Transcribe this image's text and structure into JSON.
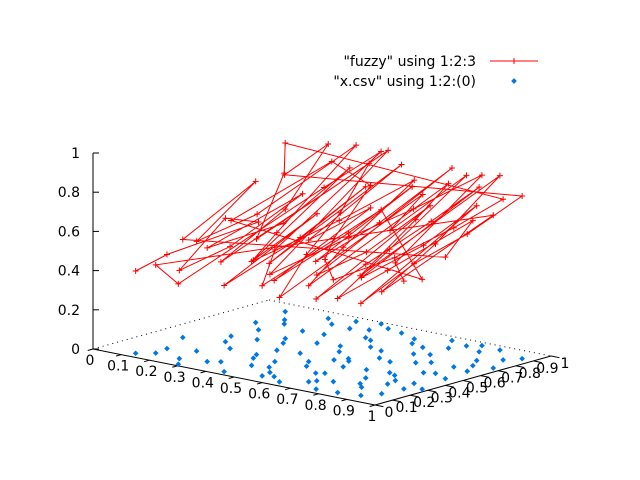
{
  "chart_data": {
    "type": "surface3d",
    "series": [
      {
        "name": "\"fuzzy\" using 1:2:3",
        "style": "linespoints",
        "color": "#ff0000"
      },
      {
        "name": "\"x.csv\" using 1:2:(0)",
        "style": "points",
        "color": "#0077e6"
      }
    ],
    "axes": {
      "x": {
        "range": [
          0,
          1
        ],
        "ticks": [
          "0",
          "0.1",
          "0.2",
          "0.3",
          "0.4",
          "0.5",
          "0.6",
          "0.7",
          "0.8",
          "0.9",
          "1"
        ]
      },
      "y": {
        "range": [
          0,
          1
        ],
        "ticks": [
          "0",
          "0.1",
          "0.2",
          "0.3",
          "0.4",
          "0.5",
          "0.6",
          "0.7",
          "0.8",
          "0.9",
          "1"
        ]
      },
      "z": {
        "range": [
          0,
          1
        ],
        "ticks": [
          "0",
          "0.2",
          "0.4",
          "0.6",
          "0.8",
          "1"
        ]
      }
    },
    "points": [
      [
        0.12,
        0.05
      ],
      [
        0.15,
        0.18
      ],
      [
        0.2,
        0.62
      ],
      [
        0.22,
        0.4
      ],
      [
        0.25,
        0.09
      ],
      [
        0.28,
        0.33
      ],
      [
        0.3,
        0.71
      ],
      [
        0.33,
        0.12
      ],
      [
        0.35,
        0.52
      ],
      [
        0.38,
        0.85
      ],
      [
        0.4,
        0.27
      ],
      [
        0.42,
        0.6
      ],
      [
        0.44,
        0.04
      ],
      [
        0.46,
        0.44
      ],
      [
        0.48,
        0.78
      ],
      [
        0.5,
        0.2
      ],
      [
        0.52,
        0.92
      ],
      [
        0.54,
        0.36
      ],
      [
        0.56,
        0.68
      ],
      [
        0.58,
        0.1
      ],
      [
        0.6,
        0.49
      ],
      [
        0.62,
        0.82
      ],
      [
        0.64,
        0.24
      ],
      [
        0.66,
        0.57
      ],
      [
        0.68,
        0.95
      ],
      [
        0.7,
        0.15
      ],
      [
        0.72,
        0.4
      ],
      [
        0.74,
        0.73
      ],
      [
        0.76,
        0.05
      ],
      [
        0.78,
        0.3
      ],
      [
        0.8,
        0.64
      ],
      [
        0.82,
        0.88
      ],
      [
        0.84,
        0.18
      ],
      [
        0.86,
        0.5
      ],
      [
        0.88,
        0.77
      ],
      [
        0.9,
        0.08
      ],
      [
        0.92,
        0.35
      ],
      [
        0.94,
        0.62
      ],
      [
        0.96,
        0.9
      ],
      [
        0.18,
        0.8
      ],
      [
        0.26,
        0.92
      ],
      [
        0.32,
        0.58
      ],
      [
        0.36,
        0.15
      ],
      [
        0.43,
        0.88
      ],
      [
        0.49,
        0.62
      ],
      [
        0.57,
        0.3
      ],
      [
        0.63,
        0.05
      ],
      [
        0.67,
        0.8
      ],
      [
        0.71,
        0.55
      ],
      [
        0.75,
        0.92
      ],
      [
        0.79,
        0.42
      ],
      [
        0.83,
        0.06
      ],
      [
        0.87,
        0.28
      ],
      [
        0.91,
        0.7
      ],
      [
        0.95,
        0.48
      ],
      [
        0.1,
        0.35
      ],
      [
        0.14,
        0.7
      ],
      [
        0.23,
        0.22
      ],
      [
        0.27,
        0.5
      ],
      [
        0.34,
        0.95
      ],
      [
        0.39,
        0.42
      ],
      [
        0.45,
        0.18
      ],
      [
        0.53,
        0.55
      ],
      [
        0.59,
        0.88
      ],
      [
        0.65,
        0.38
      ],
      [
        0.69,
        0.12
      ],
      [
        0.73,
        0.85
      ],
      [
        0.77,
        0.6
      ],
      [
        0.81,
        0.22
      ],
      [
        0.85,
        0.95
      ],
      [
        0.89,
        0.52
      ],
      [
        0.93,
        0.15
      ],
      [
        0.97,
        0.72
      ],
      [
        0.16,
        0.1
      ],
      [
        0.29,
        0.02
      ],
      [
        0.37,
        0.72
      ],
      [
        0.41,
        0.98
      ],
      [
        0.47,
        0.28
      ],
      [
        0.55,
        0.08
      ],
      [
        0.61,
        0.66
      ],
      [
        0.98,
        0.3
      ],
      [
        0.19,
        0.48
      ],
      [
        0.31,
        0.86
      ],
      [
        0.51,
        0.76
      ],
      [
        0.58,
        0.44
      ],
      [
        0.66,
        0.26
      ],
      [
        0.74,
        0.18
      ],
      [
        0.82,
        0.4
      ],
      [
        0.88,
        0.64
      ],
      [
        0.93,
        0.84
      ],
      [
        0.12,
        0.9
      ],
      [
        0.21,
        0.75
      ],
      [
        0.38,
        0.32
      ],
      [
        0.46,
        0.94
      ],
      [
        0.54,
        0.14
      ],
      [
        0.62,
        0.46
      ],
      [
        0.7,
        0.7
      ],
      [
        0.78,
        0.96
      ],
      [
        0.86,
        0.34
      ],
      [
        0.94,
        0.26
      ]
    ],
    "fuzzy_z": [
      0.42,
      0.48,
      0.55,
      0.63,
      0.45,
      0.52,
      0.7,
      0.58,
      0.61,
      0.82,
      0.5,
      0.66,
      0.44,
      0.59,
      0.77,
      0.53,
      0.86,
      0.62,
      0.71,
      0.49,
      0.64,
      0.8,
      0.57,
      0.69,
      0.88,
      0.54,
      0.6,
      0.76,
      0.46,
      0.58,
      0.72,
      0.84,
      0.56,
      0.65,
      0.79,
      0.47,
      0.61,
      0.7,
      0.83,
      0.74,
      0.89,
      0.66,
      0.51,
      0.85,
      0.68,
      0.57,
      0.43,
      0.78,
      0.67,
      0.87,
      0.63,
      0.48,
      0.58,
      0.74,
      0.62,
      0.5,
      0.72,
      0.56,
      0.64,
      0.9,
      0.6,
      0.53,
      0.67,
      0.81,
      0.61,
      0.49,
      0.84,
      0.73,
      0.55,
      0.89,
      0.66,
      0.52,
      0.78,
      0.45,
      0.41,
      0.75,
      0.88,
      0.57,
      0.46,
      0.72,
      0.56,
      0.59,
      0.83,
      0.79,
      0.62,
      0.58,
      0.52,
      0.6,
      0.71,
      0.82,
      0.86,
      0.77,
      0.59,
      0.91,
      0.5,
      0.63,
      0.74,
      0.87,
      0.6,
      0.55
    ]
  }
}
